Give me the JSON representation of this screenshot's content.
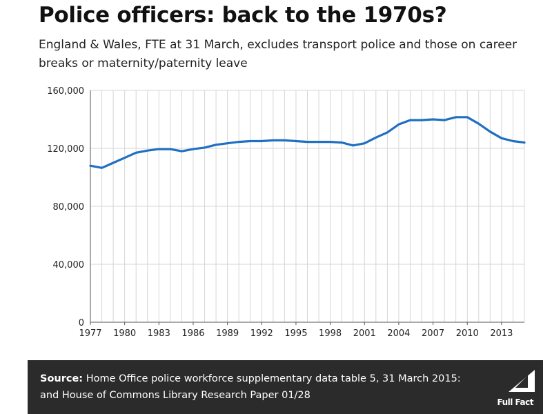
{
  "header": {
    "title": "Police officers: back to the 1970s?",
    "subtitle": "England & Wales, FTE at 31 March, excludes transport police and those on career breaks or maternity/paternity leave"
  },
  "footer": {
    "source_label": "Source:",
    "source_text": "Home Office police workforce supplementary data table 5, 31 March 2015: and House of Commons Library Research Paper 01/28",
    "logo_text": "Full Fact"
  },
  "colors": {
    "line": "#1f6fc2",
    "grid": "#d6d6d6",
    "footer_bg": "#2b2b2b"
  },
  "chart_data": {
    "type": "line",
    "title": "Police officers: back to the 1970s?",
    "subtitle": "England & Wales, FTE at 31 March, excludes transport police and those on career breaks or maternity/paternity leave",
    "xlabel": "",
    "ylabel": "",
    "xlim": [
      1977,
      2015
    ],
    "ylim": [
      0,
      160000
    ],
    "yticks": [
      0,
      40000,
      80000,
      120000,
      160000
    ],
    "ytick_labels": [
      "0",
      "40,000",
      "80,000",
      "120,000",
      "160,000"
    ],
    "xticks": [
      1977,
      1980,
      1983,
      1986,
      1989,
      1992,
      1995,
      1998,
      2001,
      2004,
      2007,
      2010,
      2013
    ],
    "xtick_labels": [
      "1977",
      "1980",
      "1983",
      "1986",
      "1989",
      "1992",
      "1995",
      "1998",
      "2001",
      "2004",
      "2007",
      "2010",
      "2013"
    ],
    "grid": true,
    "legend": "none",
    "series": [
      {
        "x": [
          1977,
          1978,
          1979,
          1980,
          1981,
          1982,
          1983,
          1984,
          1985,
          1986,
          1987,
          1988,
          1989,
          1990,
          1991,
          1992,
          1993,
          1994,
          1995,
          1996,
          1997,
          1998,
          1999,
          2000,
          2001,
          2002,
          2003,
          2004,
          2005,
          2006,
          2007,
          2008,
          2009,
          2010,
          2011,
          2012,
          2013,
          2014,
          2015
        ],
        "values": [
          108000,
          106500,
          110000,
          113500,
          117000,
          118500,
          119500,
          119500,
          118000,
          119500,
          120500,
          122500,
          123500,
          124500,
          125000,
          125000,
          125500,
          125500,
          125000,
          124500,
          124500,
          124500,
          124000,
          122000,
          123500,
          127500,
          131000,
          136500,
          139500,
          139500,
          140000,
          139500,
          141500,
          141500,
          137000,
          131500,
          127000,
          125000,
          124000
        ]
      }
    ]
  }
}
